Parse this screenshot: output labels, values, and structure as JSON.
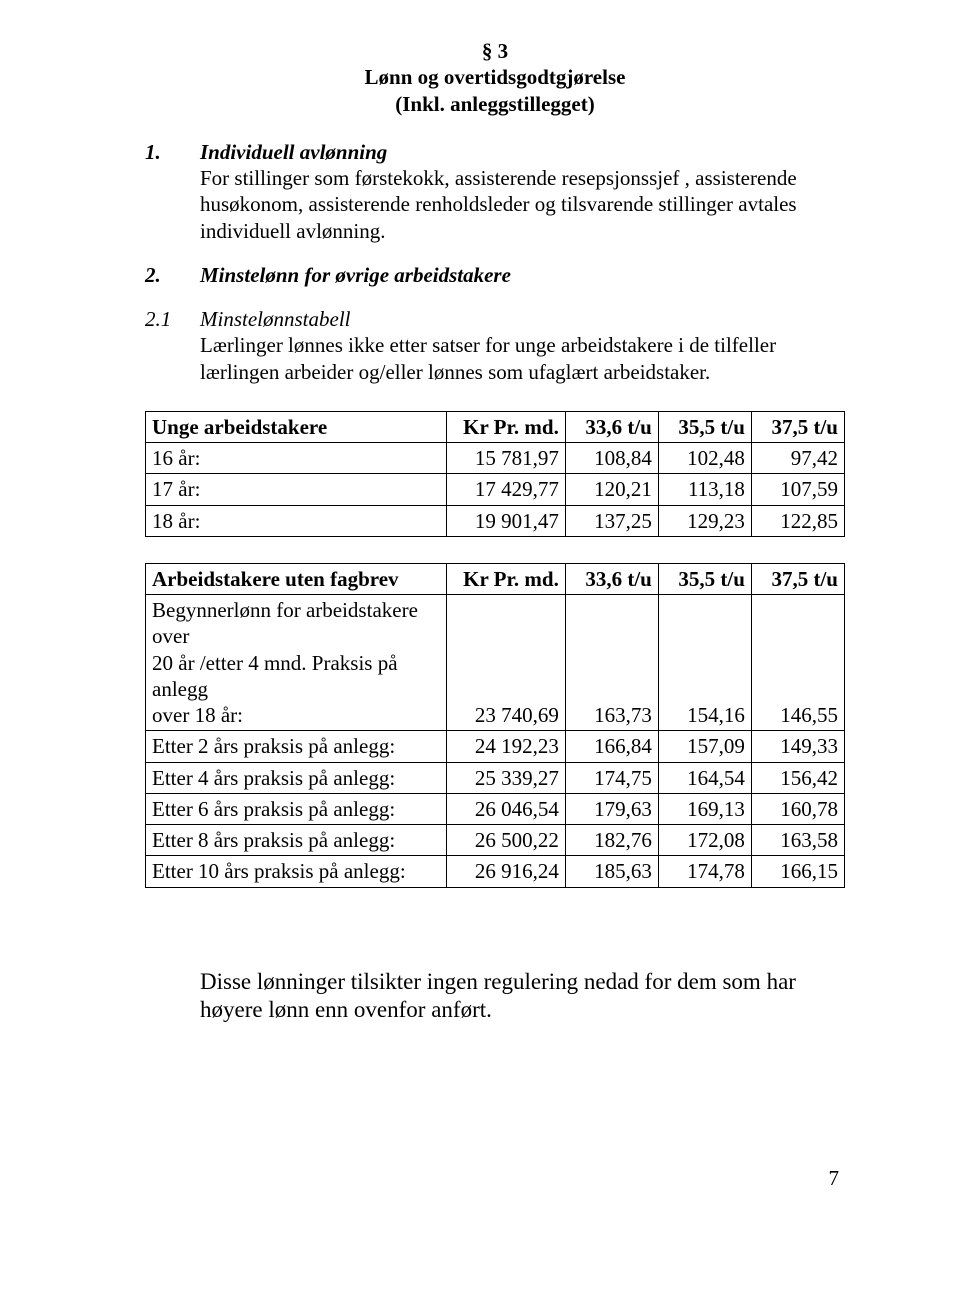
{
  "heading": {
    "l1": "§ 3",
    "l2": "Lønn og overtidsgodtgjørelse",
    "l3": "(Inkl. anleggstillegget)"
  },
  "item1": {
    "num": "1.",
    "title": "Individuell avlønning",
    "para": "For stillinger som førstekokk, assisterende resepsjonssjef , assisterende husøkonom, assisterende renholdsleder og tilsvarende stillinger avtales individuell avlønning."
  },
  "item2": {
    "num": "2.",
    "title": "Minstelønn for øvrige arbeidstakere"
  },
  "item21": {
    "num": "2.1",
    "title": "Minstelønnstabell",
    "para": "Lærlinger lønnes ikke etter satser for unge arbeidstakere i de tilfeller lærlingen arbeider og/eller lønnes som ufaglært arbeidstaker."
  },
  "table1": {
    "header": {
      "c0": "Unge arbeidstakere",
      "c1": "Kr Pr. md.",
      "c2": "33,6 t/u",
      "c3": "35,5 t/u",
      "c4": "37,5 t/u"
    },
    "rows": [
      {
        "c0": "16 år:",
        "c1": "15 781,97",
        "c2": "108,84",
        "c3": "102,48",
        "c4": "97,42"
      },
      {
        "c0": "17 år:",
        "c1": "17 429,77",
        "c2": "120,21",
        "c3": "113,18",
        "c4": "107,59"
      },
      {
        "c0": "18 år:",
        "c1": "19 901,47",
        "c2": "137,25",
        "c3": "129,23",
        "c4": "122,85"
      }
    ]
  },
  "table2": {
    "header": {
      "c0": "Arbeidstakere uten fagbrev",
      "c1": "Kr Pr. md.",
      "c2": "33,6 t/u",
      "c3": "35,5 t/u",
      "c4": "37,5 t/u"
    },
    "rows": [
      {
        "c0a": "Begynnerlønn for arbeidstakere over",
        "c0b": "20 år /etter 4 mnd. Praksis på anlegg",
        "c0c": "over 18 år:",
        "c1": "23 740,69",
        "c2": "163,73",
        "c3": "154,16",
        "c4": "146,55"
      },
      {
        "c0": "Etter 2 års praksis på anlegg:",
        "c1": "24 192,23",
        "c2": "166,84",
        "c3": "157,09",
        "c4": "149,33"
      },
      {
        "c0": "Etter 4 års praksis på anlegg:",
        "c1": "25 339,27",
        "c2": "174,75",
        "c3": "164,54",
        "c4": "156,42"
      },
      {
        "c0": "Etter 6 års praksis på anlegg:",
        "c1": "26 046,54",
        "c2": "179,63",
        "c3": "169,13",
        "c4": "160,78"
      },
      {
        "c0": "Etter 8 års praksis på anlegg:",
        "c1": "26 500,22",
        "c2": "182,76",
        "c3": "172,08",
        "c4": "163,58"
      },
      {
        "c0": "Etter 10 års praksis på anlegg:",
        "c1": "26 916,24",
        "c2": "185,63",
        "c3": "174,78",
        "c4": "166,15"
      }
    ]
  },
  "closing": "Disse lønninger tilsikter ingen regulering nedad for dem som har høyere lønn enn ovenfor anført.",
  "page_number": "7"
}
